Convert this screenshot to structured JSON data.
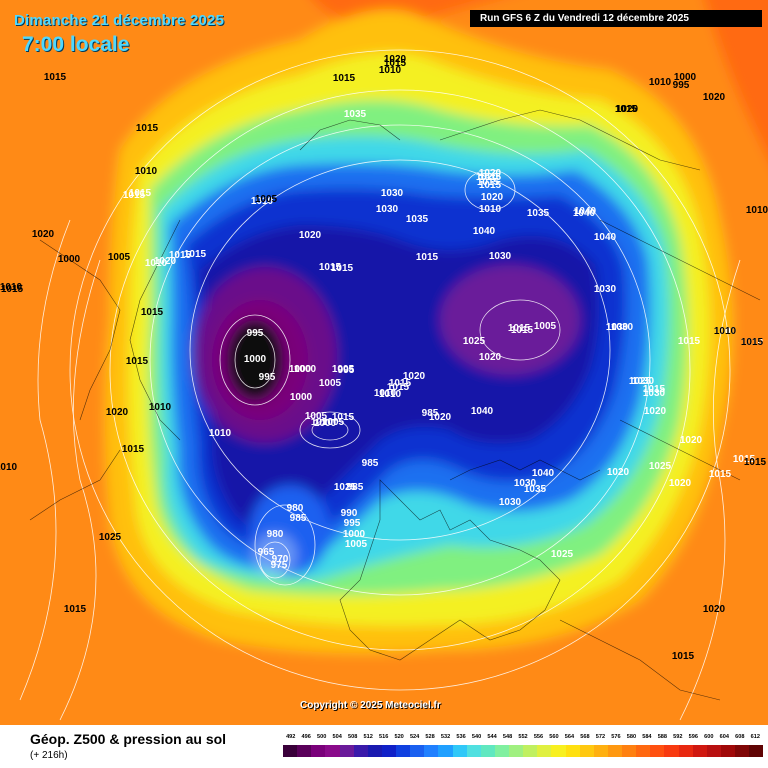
{
  "header": {
    "date": "Dimanche 21 décembre 2025",
    "time": "7:00 locale",
    "run": "Run GFS 6 Z du Vendredi 12 décembre 2025"
  },
  "copyright": "Copyright © 2025 Meteociel.fr",
  "footer": {
    "title": "Géop. Z500 & pression au sol",
    "subtitle": "(+ 216h)"
  },
  "colors": {
    "scale": [
      "#3a003a",
      "#5a005a",
      "#7a007a",
      "#8a0a8a",
      "#6a1a9a",
      "#3a1aaa",
      "#1a1ab0",
      "#1020c8",
      "#1040e0",
      "#1a60f0",
      "#2080ff",
      "#20a0ff",
      "#30c8f8",
      "#50e0e0",
      "#60e8c0",
      "#80f0a0",
      "#a0f080",
      "#c0f060",
      "#e0f040",
      "#f8f020",
      "#ffe010",
      "#ffc810",
      "#ffb010",
      "#ff9810",
      "#ff8010",
      "#ff6810",
      "#ff5010",
      "#f83a10",
      "#e82810",
      "#d01810",
      "#b81010",
      "#a00808",
      "#800606",
      "#600404"
    ]
  },
  "scale_labels": [
    "492",
    "496",
    "500",
    "504",
    "508",
    "512",
    "516",
    "520",
    "524",
    "528",
    "532",
    "536",
    "540",
    "544",
    "548",
    "552",
    "556",
    "560",
    "564",
    "568",
    "572",
    "576",
    "580",
    "584",
    "588",
    "592",
    "596",
    "600",
    "604",
    "608",
    "612"
  ],
  "pressure_labels": [
    {
      "text": "995",
      "c": "w"
    },
    {
      "text": "1000",
      "c": "w"
    },
    {
      "text": "1005",
      "c": "w"
    },
    {
      "text": "1010",
      "c": "w"
    },
    {
      "text": "1015",
      "c": "w"
    },
    {
      "text": "1000",
      "c": "w"
    },
    {
      "text": "1005",
      "c": "w"
    },
    {
      "text": "1035",
      "c": "w"
    },
    {
      "text": "1020",
      "c": "w"
    },
    {
      "text": "1015",
      "c": "w"
    },
    {
      "text": "1020",
      "c": "w"
    },
    {
      "text": "1010",
      "c": "w"
    },
    {
      "text": "1015",
      "c": "w"
    },
    {
      "text": "1015",
      "c": "w"
    },
    {
      "text": "1015",
      "c": "w"
    },
    {
      "text": "1010",
      "c": "w"
    },
    {
      "text": "1015",
      "c": "w"
    },
    {
      "text": "1020",
      "c": "w"
    },
    {
      "text": "1015",
      "c": "w"
    },
    {
      "text": "1010",
      "c": "w"
    },
    {
      "text": "1015",
      "c": "w"
    },
    {
      "text": "1020",
      "c": "w"
    },
    {
      "text": "1015",
      "c": "w"
    },
    {
      "text": "1025",
      "c": "w"
    },
    {
      "text": "1015",
      "c": "w"
    },
    {
      "text": "1010",
      "c": "w"
    },
    {
      "text": "995",
      "c": "w"
    },
    {
      "text": "1000",
      "c": "w"
    },
    {
      "text": "995",
      "c": "w"
    },
    {
      "text": "1000",
      "c": "w"
    },
    {
      "text": "1005",
      "c": "w"
    },
    {
      "text": "1005",
      "c": "w"
    },
    {
      "text": "1000",
      "c": "w"
    },
    {
      "text": "1020",
      "c": "w"
    },
    {
      "text": "1015",
      "c": "w"
    },
    {
      "text": "1010",
      "c": "w"
    },
    {
      "text": "1030",
      "c": "w"
    },
    {
      "text": "1030",
      "c": "w"
    },
    {
      "text": "1035",
      "c": "w"
    },
    {
      "text": "1020",
      "c": "w"
    },
    {
      "text": "1015",
      "c": "w"
    },
    {
      "text": "1020",
      "c": "w"
    },
    {
      "text": "1015",
      "c": "w"
    },
    {
      "text": "1030",
      "c": "w"
    },
    {
      "text": "1020",
      "c": "w"
    },
    {
      "text": "1015",
      "c": "w"
    },
    {
      "text": "1030",
      "c": "w"
    },
    {
      "text": "1035",
      "c": "w"
    },
    {
      "text": "1040",
      "c": "w"
    },
    {
      "text": "1040",
      "c": "w"
    },
    {
      "text": "1025",
      "c": "w"
    },
    {
      "text": "1020",
      "c": "w"
    },
    {
      "text": "1015",
      "c": "w"
    },
    {
      "text": "1005",
      "c": "w"
    },
    {
      "text": "1040",
      "c": "w"
    },
    {
      "text": "1040",
      "c": "w"
    },
    {
      "text": "1030",
      "c": "w"
    },
    {
      "text": "1030",
      "c": "w"
    },
    {
      "text": "1030",
      "c": "w"
    },
    {
      "text": "1025",
      "c": "w"
    },
    {
      "text": "1015",
      "c": "w"
    },
    {
      "text": "1000",
      "c": "w"
    },
    {
      "text": "1010",
      "c": "w"
    },
    {
      "text": "1030",
      "c": "w"
    },
    {
      "text": "1030",
      "c": "w"
    },
    {
      "text": "1020",
      "c": "w"
    },
    {
      "text": "1020",
      "c": "w"
    },
    {
      "text": "1020",
      "c": "w"
    },
    {
      "text": "1025",
      "c": "w"
    },
    {
      "text": "1020",
      "c": "w"
    },
    {
      "text": "1015",
      "c": "w"
    },
    {
      "text": "1015",
      "c": "w"
    },
    {
      "text": "1015",
      "c": "w"
    },
    {
      "text": "1040",
      "c": "w"
    },
    {
      "text": "1035",
      "c": "w"
    },
    {
      "text": "1030",
      "c": "w"
    },
    {
      "text": "1040",
      "c": "w"
    },
    {
      "text": "1025",
      "c": "w"
    },
    {
      "text": "985",
      "c": "w"
    },
    {
      "text": "985",
      "c": "w"
    },
    {
      "text": "985",
      "c": "w"
    },
    {
      "text": "980",
      "c": "w"
    },
    {
      "text": "985",
      "c": "w"
    },
    {
      "text": "990",
      "c": "w"
    },
    {
      "text": "995",
      "c": "w"
    },
    {
      "text": "1000",
      "c": "w"
    },
    {
      "text": "1005",
      "c": "w"
    },
    {
      "text": "980",
      "c": "w"
    },
    {
      "text": "965",
      "c": "w"
    },
    {
      "text": "970",
      "c": "w"
    },
    {
      "text": "975",
      "c": "w"
    },
    {
      "text": "1025",
      "c": "k"
    },
    {
      "text": "1015",
      "c": "k"
    },
    {
      "text": "1010",
      "c": "k"
    },
    {
      "text": "1015",
      "c": "k"
    },
    {
      "text": "1020",
      "c": "k"
    },
    {
      "text": "1015",
      "c": "k"
    },
    {
      "text": "1015",
      "c": "k"
    },
    {
      "text": "1010",
      "c": "k"
    },
    {
      "text": "1005",
      "c": "k"
    },
    {
      "text": "1000",
      "c": "k"
    },
    {
      "text": "995",
      "c": "k"
    },
    {
      "text": "1010",
      "c": "k"
    },
    {
      "text": "1015",
      "c": "k"
    },
    {
      "text": "1015",
      "c": "k"
    },
    {
      "text": "1020",
      "c": "k"
    },
    {
      "text": "1015",
      "c": "k"
    },
    {
      "text": "1010",
      "c": "k"
    },
    {
      "text": "1015",
      "c": "k"
    },
    {
      "text": "1010",
      "c": "k"
    },
    {
      "text": "1015",
      "c": "k"
    },
    {
      "text": "1020",
      "c": "k"
    },
    {
      "text": "1000",
      "c": "k"
    },
    {
      "text": "1005",
      "c": "k"
    },
    {
      "text": "1010",
      "c": "k"
    },
    {
      "text": "1015",
      "c": "k"
    },
    {
      "text": "1020",
      "c": "k"
    },
    {
      "text": "1020",
      "c": "k"
    },
    {
      "text": "1015",
      "c": "k"
    },
    {
      "text": "1020",
      "c": "k"
    },
    {
      "text": "1015",
      "c": "k"
    },
    {
      "text": "1015",
      "c": "k"
    },
    {
      "text": "1010",
      "c": "k"
    },
    {
      "text": "1010",
      "c": "k"
    }
  ]
}
